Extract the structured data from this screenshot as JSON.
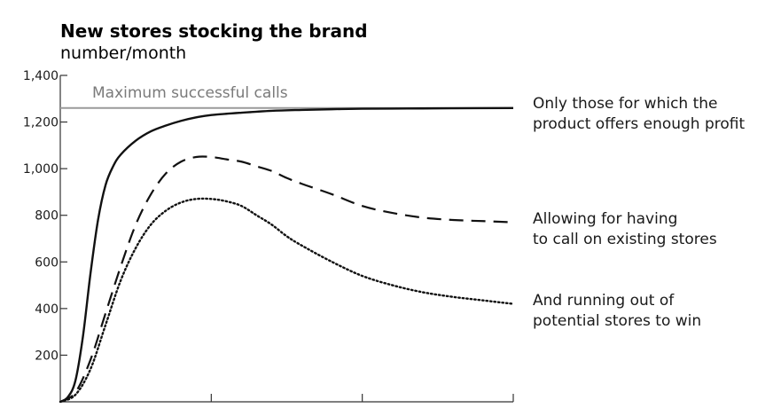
{
  "chart_data": {
    "type": "line",
    "title": "New stores stocking the brand",
    "ylabel": "number/month",
    "xlabel": "",
    "ylim": [
      0,
      1400
    ],
    "xlim": [
      0,
      3
    ],
    "yticks": [
      200,
      400,
      600,
      800,
      1000,
      1200,
      1400
    ],
    "ytick_labels": [
      "200",
      "400",
      "600",
      "800",
      "1,000",
      "1,200",
      "1,400"
    ],
    "xticks": [
      1,
      2,
      3
    ],
    "grid": false,
    "reference_line": {
      "label": "Maximum successful calls",
      "value": 1260,
      "color": "#9a9a9a"
    },
    "series": [
      {
        "name": "Only those for which the product offers enough profit",
        "label_lines": [
          "Only those for which the",
          "product offers enough profit"
        ],
        "style": "solid",
        "x": [
          0,
          0.05,
          0.1,
          0.15,
          0.2,
          0.25,
          0.3,
          0.35,
          0.4,
          0.5,
          0.6,
          0.7,
          0.8,
          0.9,
          1.0,
          1.2,
          1.4,
          1.6,
          1.8,
          2.0,
          2.3,
          2.6,
          3.0
        ],
        "y": [
          0,
          20,
          90,
          280,
          550,
          780,
          930,
          1010,
          1060,
          1120,
          1160,
          1185,
          1205,
          1220,
          1230,
          1240,
          1248,
          1252,
          1255,
          1257,
          1258,
          1259,
          1260
        ]
      },
      {
        "name": "Allowing for having to call on existing stores",
        "label_lines": [
          "Allowing for having",
          "to call on existing stores"
        ],
        "style": "dashed",
        "x": [
          0,
          0.1,
          0.2,
          0.3,
          0.4,
          0.5,
          0.6,
          0.7,
          0.8,
          0.9,
          1.0,
          1.1,
          1.2,
          1.3,
          1.4,
          1.5,
          1.6,
          1.8,
          2.0,
          2.2,
          2.4,
          2.6,
          2.8,
          3.0
        ],
        "y": [
          0,
          40,
          180,
          380,
          580,
          760,
          890,
          980,
          1030,
          1050,
          1050,
          1040,
          1030,
          1010,
          990,
          960,
          935,
          890,
          840,
          810,
          790,
          780,
          775,
          770
        ]
      },
      {
        "name": "And running out of potential stores to win",
        "label_lines": [
          "And running out of",
          "potential stores to win"
        ],
        "style": "dotted",
        "x": [
          0,
          0.1,
          0.2,
          0.3,
          0.4,
          0.5,
          0.6,
          0.7,
          0.8,
          0.9,
          1.0,
          1.1,
          1.2,
          1.3,
          1.4,
          1.5,
          1.6,
          1.8,
          2.0,
          2.2,
          2.4,
          2.6,
          2.8,
          3.0
        ],
        "y": [
          0,
          30,
          140,
          330,
          520,
          660,
          760,
          820,
          855,
          870,
          870,
          860,
          840,
          800,
          760,
          710,
          670,
          600,
          540,
          500,
          470,
          450,
          435,
          420
        ]
      }
    ]
  }
}
